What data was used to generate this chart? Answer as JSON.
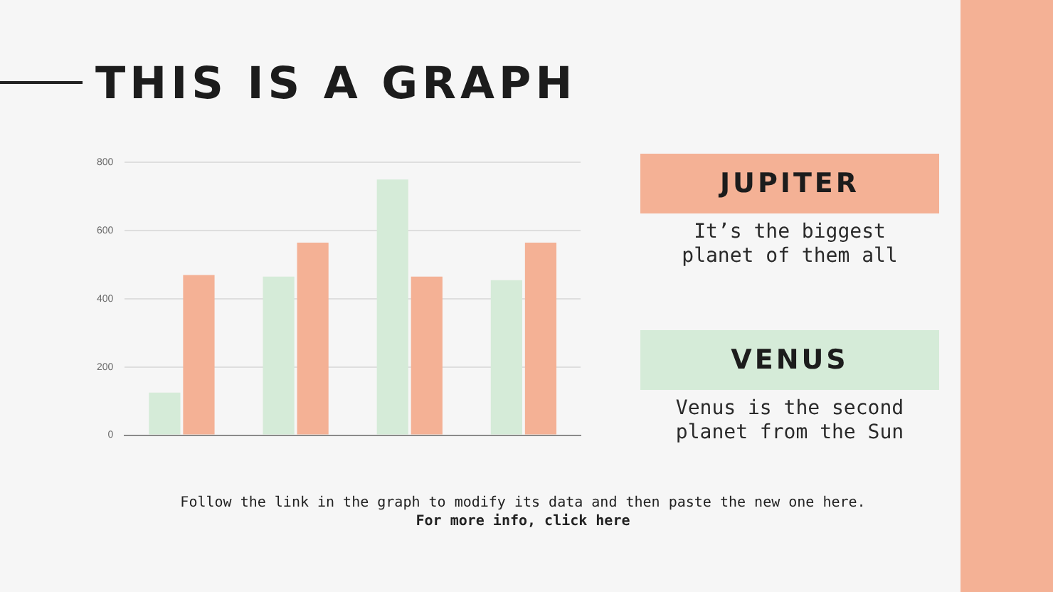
{
  "chart_data": {
    "type": "bar",
    "title": "THIS IS A GRAPH",
    "categories": [
      null,
      null,
      null,
      null
    ],
    "series": [
      {
        "name": "VENUS",
        "color": "#d5ebd8",
        "values": [
          125,
          465,
          750,
          455
        ]
      },
      {
        "name": "JUPITER",
        "color": "#f4b195",
        "values": [
          470,
          565,
          465,
          565
        ]
      }
    ],
    "ylim": [
      0,
      800
    ],
    "yticks": [
      0,
      200,
      400,
      600,
      800
    ],
    "grid": "y",
    "legend": "right",
    "tick_labels": "y",
    "annotations": [
      "It’s the biggest planet of them all",
      "Venus is the second planet from the Sun",
      "Follow the link in the graph to modify its data and then paste the new one here.",
      "For more info, click here"
    ]
  }
}
